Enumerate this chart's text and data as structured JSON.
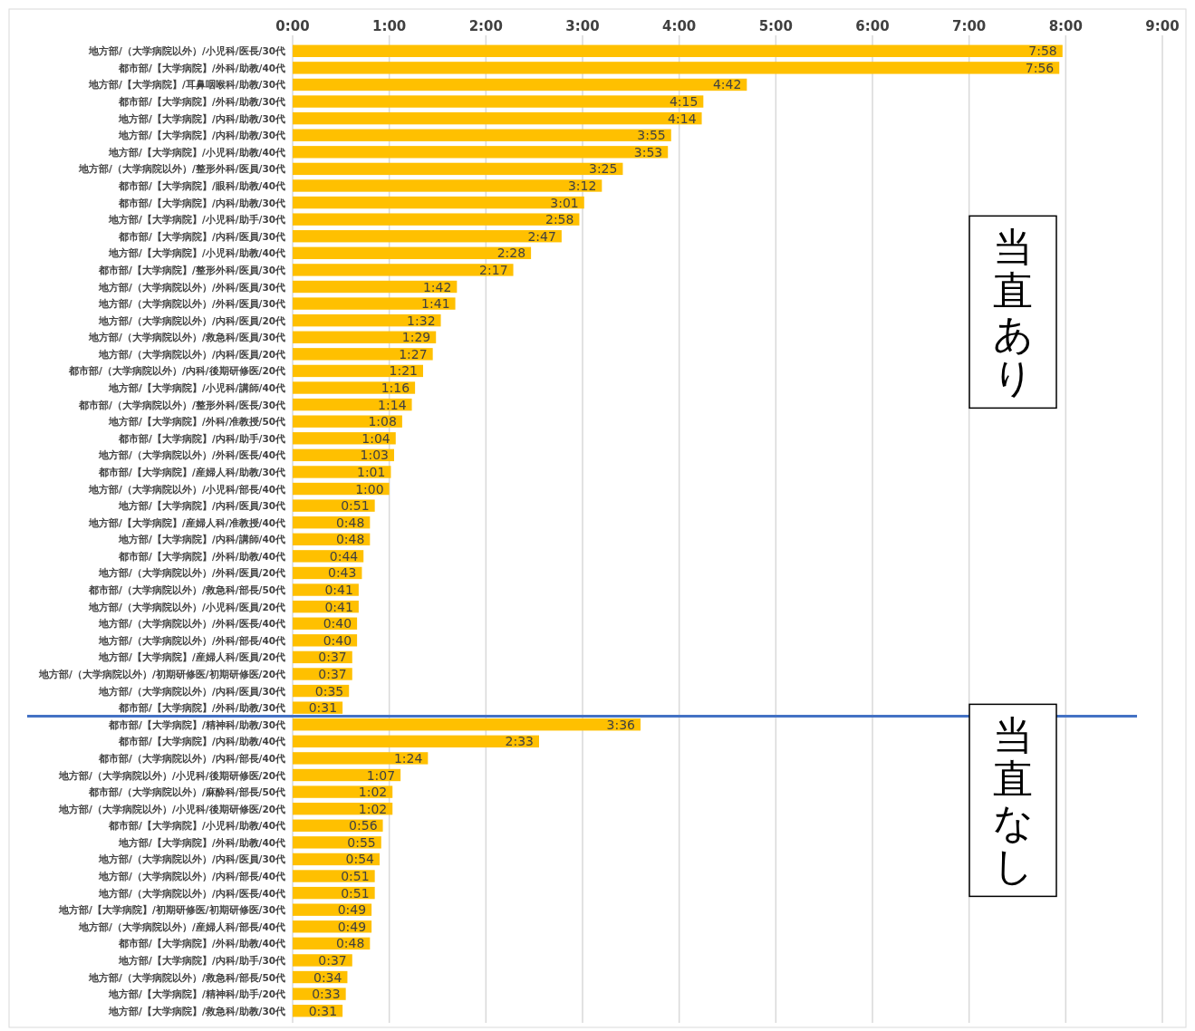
{
  "chart_data": {
    "type": "bar",
    "orientation": "horizontal",
    "grid": "x",
    "categories": [
      "地方部/（大学病院以外）/小児科/医長/30代",
      "都市部/【大学病院】/外科/助教/40代",
      "地方部/【大学病院】/耳鼻咽喉科/助教/30代",
      "都市部/【大学病院】/外科/助教/30代",
      "地方部/【大学病院】/内科/助教/30代",
      "地方部/【大学病院】/内科/助教/30代",
      "地方部/【大学病院】/小児科/助教/40代",
      "地方部/（大学病院以外）/整形外科/医員/30代",
      "都市部/【大学病院】/眼科/助教/40代",
      "都市部/【大学病院】/内科/助教/30代",
      "地方部/【大学病院】/小児科/助手/30代",
      "都市部/【大学病院】/内科/医員/30代",
      "地方部/【大学病院】/小児科/助教/40代",
      "都市部/【大学病院】/整形外科/医員/30代",
      "地方部/（大学病院以外）/外科/医員/30代",
      "地方部/（大学病院以外）/外科/医員/30代",
      "地方部/（大学病院以外）/内科/医員/20代",
      "地方部/（大学病院以外）/救急科/医員/30代",
      "地方部/（大学病院以外）/内科/医員/20代",
      "都市部/（大学病院以外）/内科/後期研修医/20代",
      "地方部/【大学病院】/小児科/講師/40代",
      "都市部/（大学病院以外）/整形外科/医長/30代",
      "地方部/【大学病院】/外科/准教授/50代",
      "都市部/【大学病院】/内科/助手/30代",
      "地方部/（大学病院以外）/外科/医長/40代",
      "都市部/【大学病院】/産婦人科/助教/30代",
      "地方部/（大学病院以外）/小児科/部長/40代",
      "地方部/【大学病院】/内科/医員/30代",
      "地方部/【大学病院】/産婦人科/准教授/40代",
      "地方部/【大学病院】/内科/講師/40代",
      "都市部/【大学病院】/外科/助教/40代",
      "地方部/（大学病院以外）/外科/医員/20代",
      "都市部/（大学病院以外）/救急科/部長/50代",
      "地方部/（大学病院以外）/小児科/医員/20代",
      "地方部/（大学病院以外）/外科/医長/40代",
      "地方部/（大学病院以外）/外科/部長/40代",
      "地方部/【大学病院】/産婦人科/医員/20代",
      "地方部/（大学病院以外）/初期研修医/初期研修医/20代",
      "地方部/（大学病院以外）/内科/医員/30代",
      "都市部/【大学病院】/外科/助教/30代",
      "都市部/【大学病院】/精神科/助教/30代",
      "都市部/【大学病院】/内科/助教/40代",
      "都市部/（大学病院以外）/内科/部長/40代",
      "地方部/（大学病院以外）/小児科/後期研修医/20代",
      "都市部/（大学病院以外）/麻酔科/部長/50代",
      "地方部/（大学病院以外）/小児科/後期研修医/20代",
      "都市部/【大学病院】/小児科/助教/40代",
      "地方部/【大学病院】/外科/助教/40代",
      "地方部/（大学病院以外）/内科/医員/30代",
      "地方部/（大学病院以外）/内科/部長/40代",
      "地方部/（大学病院以外）/内科/医長/40代",
      "地方部/【大学病院】/初期研修医/初期研修医/30代",
      "地方部/（大学病院以外）/産婦人科/部長/40代",
      "都市部/【大学病院】/外科/助教/40代",
      "地方部/【大学病院】/内科/助手/30代",
      "地方部/（大学病院以外）/救急科/部長/50代",
      "地方部/【大学病院】/精神科/助手/20代",
      "地方部/【大学病院】/救急科/助教/30代"
    ],
    "series": [
      {
        "color": "#ffc000",
        "values": [
          478,
          476,
          282,
          255,
          254,
          235,
          233,
          205,
          192,
          181,
          178,
          167,
          148,
          137,
          102,
          101,
          92,
          89,
          87,
          81,
          76,
          74,
          68,
          64,
          63,
          61,
          60,
          51,
          48,
          48,
          44,
          43,
          41,
          41,
          40,
          40,
          37,
          37,
          35,
          31,
          216,
          153,
          84,
          67,
          62,
          62,
          56,
          55,
          54,
          51,
          51,
          49,
          49,
          48,
          37,
          34,
          33,
          31
        ],
        "value_labels": [
          "7:58",
          "7:56",
          "4:42",
          "4:15",
          "4:14",
          "3:55",
          "3:53",
          "3:25",
          "3:12",
          "3:01",
          "2:58",
          "2:47",
          "2:28",
          "2:17",
          "1:42",
          "1:41",
          "1:32",
          "1:29",
          "1:27",
          "1:21",
          "1:16",
          "1:14",
          "1:08",
          "1:04",
          "1:03",
          "1:01",
          "1:00",
          "0:51",
          "0:48",
          "0:48",
          "0:44",
          "0:43",
          "0:41",
          "0:41",
          "0:40",
          "0:40",
          "0:37",
          "0:37",
          "0:35",
          "0:31",
          "3:36",
          "2:33",
          "1:24",
          "1:07",
          "1:02",
          "1:02",
          "0:56",
          "0:55",
          "0:54",
          "0:51",
          "0:51",
          "0:49",
          "0:49",
          "0:48",
          "0:37",
          "0:34",
          "0:33",
          "0:31"
        ]
      }
    ],
    "xlim": [
      0,
      540
    ],
    "xticks": [
      {
        "value": 0,
        "label": "0:00"
      },
      {
        "value": 60,
        "label": "1:00"
      },
      {
        "value": 120,
        "label": "2:00"
      },
      {
        "value": 180,
        "label": "3:00"
      },
      {
        "value": 240,
        "label": "4:00"
      },
      {
        "value": 300,
        "label": "5:00"
      },
      {
        "value": 360,
        "label": "6:00"
      },
      {
        "value": 420,
        "label": "7:00"
      },
      {
        "value": 480,
        "label": "8:00"
      },
      {
        "value": 540,
        "label": "9:00"
      }
    ],
    "ref_lines": [
      {
        "axis": "y",
        "value": "都市部/【大学病院】/精神科/助教/30代",
        "color": "#4472c4"
      }
    ],
    "annotations": [
      "当直あり",
      "当直なし"
    ]
  }
}
